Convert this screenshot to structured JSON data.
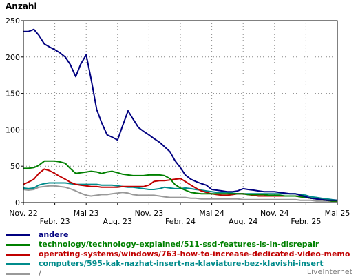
{
  "chart_data": {
    "type": "line",
    "ylabel": "Anzahl",
    "ylim": [
      0,
      250
    ],
    "yticks": [
      "0",
      "50",
      "100",
      "150",
      "200",
      "250"
    ],
    "xticks_row1": [
      "Nov. 22",
      "Mai 23",
      "Nov. 23",
      "Mai 24",
      "Nov. 24",
      "Mai 25"
    ],
    "xticks_row2": [
      "Febr. 23",
      "Aug. 23",
      "Febr. 24",
      "Aug. 24",
      "Febr. 25"
    ],
    "x_range": [
      "2022-11",
      "2025-05"
    ],
    "grid": true,
    "legend_position": "bottom",
    "series": [
      {
        "name": "andere",
        "color": "#000080",
        "x": [
          "2022-11-01",
          "2022-11-15",
          "2022-12-01",
          "2022-12-15",
          "2023-01-01",
          "2023-01-15",
          "2023-02-01",
          "2023-02-15",
          "2023-03-01",
          "2023-03-15",
          "2023-04-01",
          "2023-04-15",
          "2023-05-01",
          "2023-05-15",
          "2023-06-01",
          "2023-06-15",
          "2023-07-01",
          "2023-07-15",
          "2023-08-01",
          "2023-08-15",
          "2023-09-01",
          "2023-09-15",
          "2023-10-01",
          "2023-10-15",
          "2023-11-01",
          "2023-11-15",
          "2023-12-01",
          "2023-12-15",
          "2024-01-01",
          "2024-01-15",
          "2024-02-01",
          "2024-02-15",
          "2024-03-01",
          "2024-03-15",
          "2024-04-01",
          "2024-04-15",
          "2024-05-01",
          "2024-05-15",
          "2024-06-01",
          "2024-06-15",
          "2024-07-01",
          "2024-07-15",
          "2024-08-01",
          "2024-08-15",
          "2024-09-01",
          "2024-09-15",
          "2024-10-01",
          "2024-10-15",
          "2024-11-01",
          "2024-11-15",
          "2024-12-01",
          "2024-12-15",
          "2025-01-01",
          "2025-01-15",
          "2025-02-01",
          "2025-02-15",
          "2025-03-01",
          "2025-03-15",
          "2025-04-01",
          "2025-04-15",
          "2025-05-01"
        ],
        "values": [
          235,
          235,
          238,
          230,
          218,
          214,
          210,
          206,
          200,
          190,
          173,
          190,
          203,
          170,
          128,
          110,
          93,
          90,
          86,
          105,
          126,
          115,
          103,
          98,
          93,
          88,
          83,
          77,
          70,
          58,
          48,
          38,
          32,
          29,
          26,
          24,
          18,
          17,
          16,
          15,
          15,
          16,
          19,
          18,
          17,
          16,
          15,
          15,
          15,
          14,
          13,
          12,
          12,
          10,
          8,
          6,
          5,
          4,
          3,
          3,
          3
        ]
      },
      {
        "name": "technology/technology-explained/511-ssd-features-is-in-disrepair",
        "color": "#008000",
        "x": [
          "2022-11-01",
          "2022-11-15",
          "2022-12-01",
          "2022-12-15",
          "2023-01-01",
          "2023-01-15",
          "2023-02-01",
          "2023-02-15",
          "2023-03-01",
          "2023-03-15",
          "2023-04-01",
          "2023-04-15",
          "2023-05-01",
          "2023-05-15",
          "2023-06-01",
          "2023-06-15",
          "2023-07-01",
          "2023-07-15",
          "2023-08-01",
          "2023-08-15",
          "2023-09-01",
          "2023-09-15",
          "2023-10-01",
          "2023-10-15",
          "2023-11-01",
          "2023-11-15",
          "2023-12-01",
          "2023-12-15",
          "2024-01-01",
          "2024-01-15",
          "2024-02-01",
          "2024-02-15",
          "2024-03-01",
          "2024-03-15",
          "2024-04-01",
          "2024-04-15",
          "2024-05-01",
          "2024-05-15",
          "2024-06-01",
          "2024-06-15",
          "2024-07-01",
          "2024-07-15",
          "2024-08-01",
          "2024-08-15",
          "2024-09-01",
          "2024-09-15",
          "2024-10-01",
          "2024-10-15",
          "2024-11-01",
          "2024-11-15",
          "2024-12-01",
          "2024-12-15",
          "2025-01-01",
          "2025-01-15",
          "2025-02-01",
          "2025-02-15",
          "2025-03-01",
          "2025-03-15",
          "2025-04-01",
          "2025-04-15",
          "2025-05-01"
        ],
        "values": [
          47,
          47,
          48,
          51,
          57,
          57,
          57,
          56,
          54,
          47,
          40,
          41,
          42,
          43,
          42,
          40,
          42,
          43,
          41,
          39,
          38,
          37,
          37,
          37,
          38,
          38,
          38,
          37,
          33,
          25,
          20,
          17,
          14,
          13,
          12,
          12,
          12,
          12,
          12,
          12,
          12,
          12,
          12,
          11,
          11,
          11,
          11,
          10,
          10,
          10,
          9,
          9,
          9,
          8,
          7,
          6,
          5,
          4,
          3,
          2,
          2
        ]
      },
      {
        "name": "operating-systems/windows/763-how-to-increase-dedicated-video-memo",
        "color": "#c00000",
        "x": [
          "2022-11-01",
          "2022-11-15",
          "2022-12-01",
          "2022-12-15",
          "2023-01-01",
          "2023-01-15",
          "2023-02-01",
          "2023-02-15",
          "2023-03-01",
          "2023-03-15",
          "2023-04-01",
          "2023-04-15",
          "2023-05-01",
          "2023-05-15",
          "2023-06-01",
          "2023-06-15",
          "2023-07-01",
          "2023-07-15",
          "2023-08-01",
          "2023-08-15",
          "2023-09-01",
          "2023-09-15",
          "2023-10-01",
          "2023-10-15",
          "2023-11-01",
          "2023-11-15",
          "2023-12-01",
          "2023-12-15",
          "2024-01-01",
          "2024-01-15",
          "2024-02-01",
          "2024-02-15",
          "2024-03-01",
          "2024-03-15",
          "2024-04-01",
          "2024-04-15",
          "2024-05-01",
          "2024-05-15",
          "2024-06-01",
          "2024-06-15",
          "2024-07-01",
          "2024-07-15",
          "2024-08-01",
          "2024-08-15",
          "2024-09-01",
          "2024-09-15",
          "2024-10-01",
          "2024-10-15",
          "2024-11-01",
          "2024-11-15",
          "2024-12-01",
          "2024-12-15",
          "2025-01-01",
          "2025-01-15",
          "2025-02-01",
          "2025-02-15",
          "2025-03-01",
          "2025-03-15",
          "2025-04-01",
          "2025-04-15",
          "2025-05-01"
        ],
        "values": [
          25,
          28,
          32,
          40,
          46,
          44,
          40,
          36,
          32,
          28,
          25,
          24,
          23,
          22,
          22,
          21,
          21,
          21,
          21,
          22,
          22,
          22,
          22,
          22,
          24,
          29,
          30,
          30,
          31,
          32,
          33,
          29,
          24,
          20,
          16,
          14,
          12,
          11,
          10,
          10,
          11,
          12,
          12,
          11,
          10,
          9,
          9,
          9,
          9,
          9,
          9,
          9,
          9,
          8,
          7,
          6,
          5,
          4,
          3,
          2,
          2
        ]
      },
      {
        "name": "computers/595-kak-nazhat-insert-na-klaviature-bez-klavishi-insert",
        "color": "#008b8b",
        "x": [
          "2022-11-01",
          "2022-11-15",
          "2022-12-01",
          "2022-12-15",
          "2023-01-01",
          "2023-01-15",
          "2023-02-01",
          "2023-02-15",
          "2023-03-01",
          "2023-03-15",
          "2023-04-01",
          "2023-04-15",
          "2023-05-01",
          "2023-05-15",
          "2023-06-01",
          "2023-06-15",
          "2023-07-01",
          "2023-07-15",
          "2023-08-01",
          "2023-08-15",
          "2023-09-01",
          "2023-09-15",
          "2023-10-01",
          "2023-10-15",
          "2023-11-01",
          "2023-11-15",
          "2023-12-01",
          "2023-12-15",
          "2024-01-01",
          "2024-01-15",
          "2024-02-01",
          "2024-02-15",
          "2024-03-01",
          "2024-03-15",
          "2024-04-01",
          "2024-04-15",
          "2024-05-01",
          "2024-05-15",
          "2024-06-01",
          "2024-06-15",
          "2024-07-01",
          "2024-07-15",
          "2024-08-01",
          "2024-08-15",
          "2024-09-01",
          "2024-09-15",
          "2024-10-01",
          "2024-10-15",
          "2024-11-01",
          "2024-11-15",
          "2024-12-01",
          "2024-12-15",
          "2025-01-01",
          "2025-01-15",
          "2025-02-01",
          "2025-02-15",
          "2025-03-01",
          "2025-03-15",
          "2025-04-01",
          "2025-04-15",
          "2025-05-01"
        ],
        "values": [
          20,
          19,
          20,
          24,
          26,
          27,
          27,
          27,
          27,
          26,
          25,
          25,
          25,
          25,
          25,
          24,
          24,
          24,
          23,
          22,
          21,
          21,
          20,
          19,
          18,
          18,
          19,
          21,
          20,
          19,
          19,
          20,
          19,
          18,
          17,
          16,
          15,
          14,
          14,
          14,
          13,
          12,
          12,
          12,
          12,
          12,
          12,
          12,
          12,
          12,
          12,
          12,
          12,
          11,
          10,
          8,
          7,
          6,
          5,
          4,
          3
        ]
      },
      {
        "name": "/",
        "color": "#999999",
        "x": [
          "2022-11-01",
          "2022-11-15",
          "2022-12-01",
          "2022-12-15",
          "2023-01-01",
          "2023-01-15",
          "2023-02-01",
          "2023-02-15",
          "2023-03-01",
          "2023-03-15",
          "2023-04-01",
          "2023-04-15",
          "2023-05-01",
          "2023-05-15",
          "2023-06-01",
          "2023-06-15",
          "2023-07-01",
          "2023-07-15",
          "2023-08-01",
          "2023-08-15",
          "2023-09-01",
          "2023-09-15",
          "2023-10-01",
          "2023-10-15",
          "2023-11-01",
          "2023-11-15",
          "2023-12-01",
          "2023-12-15",
          "2024-01-01",
          "2024-01-15",
          "2024-02-01",
          "2024-02-15",
          "2024-03-01",
          "2024-03-15",
          "2024-04-01",
          "2024-04-15",
          "2024-05-01",
          "2024-05-15",
          "2024-06-01",
          "2024-06-15",
          "2024-07-01",
          "2024-07-15",
          "2024-08-01",
          "2024-08-15",
          "2024-09-01",
          "2024-09-15",
          "2024-10-01",
          "2024-10-15",
          "2024-11-01",
          "2024-11-15",
          "2024-12-01",
          "2024-12-15",
          "2025-01-01",
          "2025-01-15",
          "2025-02-01",
          "2025-02-15",
          "2025-03-01",
          "2025-03-15",
          "2025-04-01",
          "2025-04-15",
          "2025-05-01"
        ],
        "values": [
          18,
          17,
          18,
          21,
          22,
          23,
          23,
          22,
          21,
          19,
          16,
          13,
          10,
          9,
          10,
          11,
          11,
          12,
          13,
          14,
          13,
          11,
          10,
          10,
          10,
          10,
          9,
          8,
          7,
          7,
          7,
          7,
          6,
          6,
          5,
          5,
          5,
          5,
          5,
          5,
          5,
          5,
          4,
          4,
          4,
          4,
          4,
          4,
          4,
          4,
          4,
          4,
          4,
          3,
          3,
          3,
          2,
          2,
          2,
          2,
          2
        ]
      }
    ]
  },
  "watermark": "LiveInternet"
}
